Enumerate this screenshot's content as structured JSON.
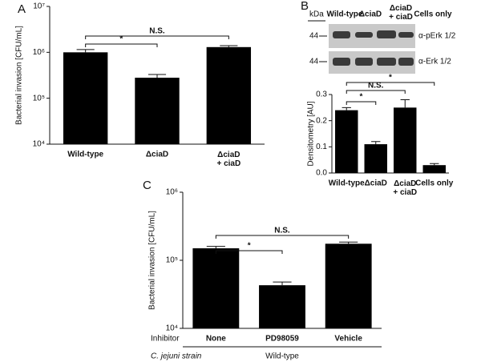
{
  "chart_data": [
    {
      "type": "bar",
      "panel_label": "A",
      "y_label": "Bacterial invasion [CFU/mL]",
      "log_scale": true,
      "categories": [
        "Wild-type",
        "ΔciaD",
        "ΔciaD\n+ ciaD"
      ],
      "values": [
        1000000,
        280000,
        1300000
      ],
      "errors": [
        150000,
        50000,
        100000
      ],
      "color": "#000000",
      "ylim": [
        10000,
        10000000
      ],
      "yticks": [
        {
          "value": 10000,
          "label": "10⁴"
        },
        {
          "value": 100000,
          "label": "10⁵"
        },
        {
          "value": 1000000,
          "label": "10⁶"
        },
        {
          "value": 10000000,
          "label": "10⁷"
        }
      ],
      "annotations": [
        "*",
        "N.S."
      ]
    },
    {
      "type": "bar",
      "panel_label": "B",
      "y_label": "Densitometry [AU]",
      "log_scale": false,
      "categories": [
        "Wild-type",
        "ΔciaD",
        "ΔciaD\n+ ciaD",
        "Cells only"
      ],
      "values": [
        0.24,
        0.11,
        0.25,
        0.03
      ],
      "errors": [
        0.01,
        0.01,
        0.03,
        0.006
      ],
      "color": "#000000",
      "ylim": [
        0,
        0.3
      ],
      "yticks": [
        {
          "value": 0,
          "label": "0.0"
        },
        0.1,
        0.2,
        0.3
      ],
      "annotations": [
        "*",
        "N.S.",
        "*"
      ],
      "blot": {
        "kda_label": "kDa",
        "markers": [
          "44",
          "44"
        ],
        "antibodies": [
          "α-pErk 1/2",
          "α-Erk 1/2"
        ]
      }
    },
    {
      "type": "bar",
      "panel_label": "C",
      "y_label": "Bacterial invasion [CFU/mL]",
      "log_scale": true,
      "categories": [
        "None",
        "PD98059",
        "Vehicle"
      ],
      "values": [
        150000,
        43000,
        175000
      ],
      "errors": [
        10000,
        5000,
        10000
      ],
      "color": "#000000",
      "ylim": [
        10000,
        1000000
      ],
      "yticks": [
        {
          "value": 10000,
          "label": "10⁴"
        },
        {
          "value": 100000,
          "label": "10⁵"
        },
        {
          "value": 1000000,
          "label": "10⁶"
        }
      ],
      "annotations": [
        "*",
        "N.S."
      ],
      "row_labels": [
        "Inhibitor",
        "C. jejuni strain"
      ],
      "strain": "Wild-type"
    }
  ]
}
